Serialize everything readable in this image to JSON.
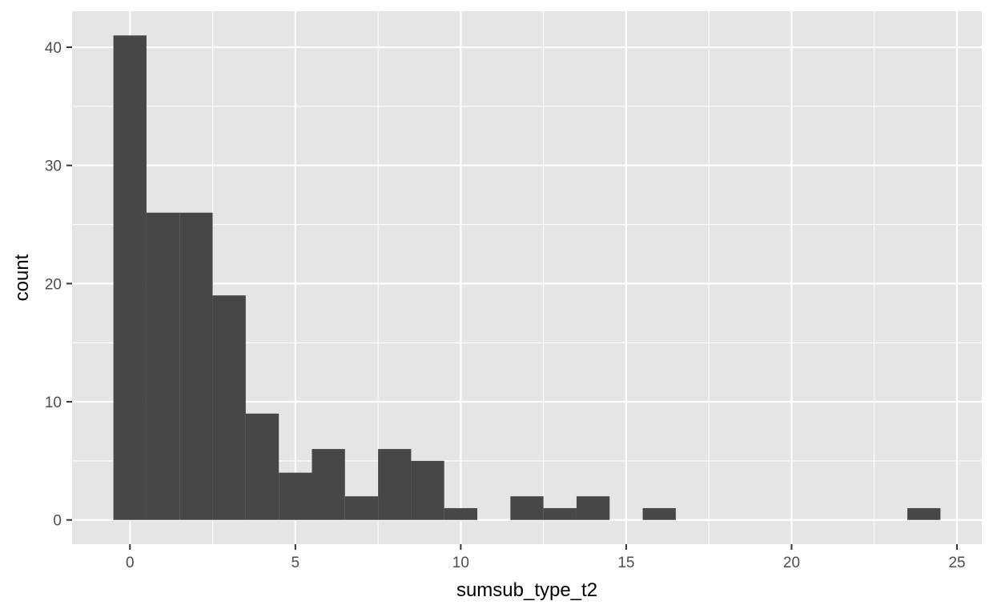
{
  "chart_data": {
    "type": "bar",
    "title": "",
    "xlabel": "sumsub_type_t2",
    "ylabel": "count",
    "bin_width": 1,
    "bins": [
      {
        "x": 0,
        "count": 41
      },
      {
        "x": 1,
        "count": 26
      },
      {
        "x": 2,
        "count": 26
      },
      {
        "x": 3,
        "count": 19
      },
      {
        "x": 4,
        "count": 9
      },
      {
        "x": 5,
        "count": 4
      },
      {
        "x": 6,
        "count": 6
      },
      {
        "x": 7,
        "count": 2
      },
      {
        "x": 8,
        "count": 6
      },
      {
        "x": 9,
        "count": 5
      },
      {
        "x": 10,
        "count": 1
      },
      {
        "x": 11,
        "count": 0
      },
      {
        "x": 12,
        "count": 2
      },
      {
        "x": 13,
        "count": 1
      },
      {
        "x": 14,
        "count": 2
      },
      {
        "x": 15,
        "count": 0
      },
      {
        "x": 16,
        "count": 1
      },
      {
        "x": 17,
        "count": 0
      },
      {
        "x": 18,
        "count": 0
      },
      {
        "x": 19,
        "count": 0
      },
      {
        "x": 20,
        "count": 0
      },
      {
        "x": 21,
        "count": 0
      },
      {
        "x": 22,
        "count": 0
      },
      {
        "x": 23,
        "count": 0
      },
      {
        "x": 24,
        "count": 1
      }
    ],
    "xlim": [
      -1.75,
      25.75
    ],
    "ylim": [
      -2.05,
      43.05
    ],
    "x_ticks": [
      0,
      5,
      10,
      15,
      20,
      25
    ],
    "y_ticks": [
      0,
      10,
      20,
      30,
      40
    ],
    "x_tick_labels": [
      "0",
      "5",
      "10",
      "15",
      "20",
      "25"
    ],
    "y_tick_labels": [
      "0",
      "10",
      "20",
      "30",
      "40"
    ],
    "grid": true,
    "colors": {
      "panel_background": "#e5e5e5",
      "grid_line": "#ffffff",
      "bar_fill": "#474747",
      "tick_text": "#4d4d4d",
      "axis_title": "#000000"
    }
  }
}
